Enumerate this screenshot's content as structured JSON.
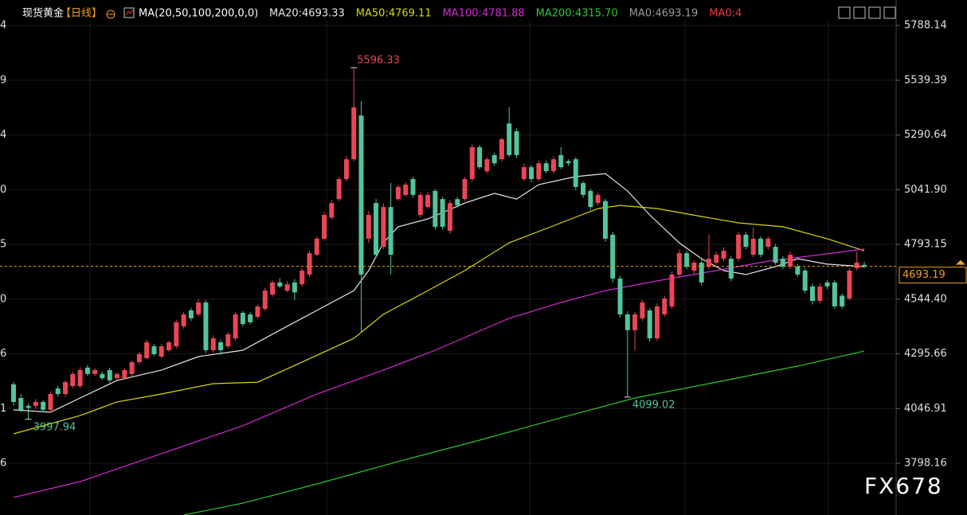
{
  "chart_data": {
    "type": "candlestick",
    "header": {
      "symbol": "现货黄金",
      "period": "【日线】",
      "ma_params": "MA(20,50,100,200,0,0)",
      "extra_labels": [
        {
          "text": "MA0:4693.19",
          "color": "#9a9a9a"
        },
        {
          "text": "MA0:4",
          "color": "#e8383d"
        }
      ]
    },
    "watermark": "FX678",
    "up_color": "#eb4656",
    "down_color": "#52c59c",
    "ylim": [
      3563,
      5904
    ],
    "yticks": [
      5788.14,
      5539.39,
      5290.64,
      {
        "value": 5041.9,
        "label": "5041.90"
      },
      4793.15,
      {
        "value": 4544.4,
        "label": "4544.40"
      },
      4295.66,
      4046.91,
      3798.16
    ],
    "left_axis_tick_labels": [
      "4",
      "9",
      "4",
      "0",
      "5",
      "0",
      "6",
      "1",
      "6"
    ],
    "grid": true,
    "candles": [
      [
        4157,
        4167,
        4059,
        4077
      ],
      [
        4095,
        4113,
        4030,
        4041
      ],
      [
        4059,
        4070,
        3997.94,
        4050
      ],
      [
        4059,
        4090,
        4045,
        4077
      ],
      [
        4077,
        4085,
        4030,
        4041
      ],
      [
        4041,
        4125,
        4030,
        4113
      ],
      [
        4138,
        4150,
        4100,
        4113
      ],
      [
        4113,
        4175,
        4100,
        4167
      ],
      [
        4149,
        4215,
        4140,
        4204
      ],
      [
        4149,
        4235,
        4140,
        4222
      ],
      [
        4233,
        4245,
        4195,
        4204
      ],
      [
        4204,
        4230,
        4195,
        4222
      ],
      [
        4204,
        4215,
        4178,
        4185
      ],
      [
        4222,
        4233,
        4165,
        4175
      ],
      [
        4185,
        4212,
        4178,
        4204
      ],
      [
        4185,
        4230,
        4178,
        4222
      ],
      [
        4204,
        4265,
        4195,
        4258
      ],
      [
        4258,
        4305,
        4250,
        4294
      ],
      [
        4276,
        4360,
        4270,
        4348
      ],
      [
        4330,
        4340,
        4285,
        4294
      ],
      [
        4283,
        4340,
        4275,
        4330
      ],
      [
        4312,
        4355,
        4305,
        4348
      ],
      [
        4330,
        4450,
        4320,
        4439
      ],
      [
        4421,
        4485,
        4410,
        4475
      ],
      [
        4493,
        4505,
        4445,
        4457
      ],
      [
        4475,
        4545,
        4465,
        4529
      ],
      [
        4529,
        4540,
        4300,
        4312
      ],
      [
        4312,
        4380,
        4300,
        4366
      ],
      [
        4348,
        4360,
        4290,
        4312
      ],
      [
        4330,
        4395,
        4320,
        4384
      ],
      [
        4366,
        4485,
        4355,
        4475
      ],
      [
        4482,
        4490,
        4420,
        4431
      ],
      [
        4475,
        4485,
        4430,
        4439
      ],
      [
        4464,
        4520,
        4455,
        4511
      ],
      [
        4500,
        4595,
        4490,
        4583
      ],
      [
        4565,
        4630,
        4555,
        4620
      ],
      [
        4620,
        4640,
        4595,
        4602
      ],
      [
        4583,
        4625,
        4575,
        4612
      ],
      [
        4620,
        4635,
        4540,
        4575
      ],
      [
        4612,
        4685,
        4600,
        4674
      ],
      [
        4656,
        4765,
        4645,
        4753
      ],
      [
        4746,
        4830,
        4740,
        4819
      ],
      [
        4819,
        4940,
        4810,
        4927
      ],
      [
        4915,
        4995,
        4905,
        4981
      ],
      [
        4999,
        5100,
        4990,
        5090
      ],
      [
        5090,
        5195,
        5080,
        5180
      ],
      [
        5180,
        5596.33,
        5170,
        5416
      ],
      [
        5379,
        5445,
        4392,
        4656
      ],
      [
        4819,
        4945,
        4800,
        4927
      ],
      [
        4981,
        5000,
        4730,
        4746
      ],
      [
        4782,
        4980,
        4770,
        4963
      ],
      [
        4963,
        5072,
        4656,
        4746
      ],
      [
        4999,
        5065,
        4990,
        5054
      ],
      [
        5018,
        5075,
        5010,
        5065
      ],
      [
        5090,
        5100,
        5005,
        5018
      ],
      [
        4927,
        5030,
        4915,
        5018
      ],
      [
        4963,
        5030,
        4955,
        5018
      ],
      [
        5036,
        5045,
        4860,
        4873
      ],
      [
        4999,
        5010,
        4860,
        4873
      ],
      [
        4855,
        4995,
        4840,
        4981
      ],
      [
        4999,
        5010,
        4960,
        4971
      ],
      [
        4999,
        5100,
        4990,
        5090
      ],
      [
        5090,
        5250,
        5080,
        5235
      ],
      [
        5235,
        5245,
        5135,
        5144
      ],
      [
        5126,
        5190,
        5115,
        5180
      ],
      [
        5199,
        5210,
        5150,
        5162
      ],
      [
        5180,
        5280,
        5170,
        5271
      ],
      [
        5343,
        5416,
        5190,
        5199
      ],
      [
        5307,
        5320,
        5185,
        5199
      ],
      [
        5090,
        5160,
        5080,
        5144
      ],
      [
        5144,
        5155,
        5075,
        5090
      ],
      [
        5090,
        5175,
        5080,
        5162
      ],
      [
        5162,
        5175,
        5115,
        5126
      ],
      [
        5126,
        5195,
        5115,
        5180
      ],
      [
        5199,
        5235,
        5135,
        5144
      ],
      [
        5171,
        5180,
        5150,
        5162
      ],
      [
        5180,
        5190,
        5040,
        5054
      ],
      [
        5072,
        5080,
        5005,
        5018
      ],
      [
        5036,
        5045,
        4950,
        4963
      ],
      [
        4981,
        5030,
        4970,
        5018
      ],
      [
        4990,
        5000,
        4805,
        4819
      ],
      [
        4837,
        4850,
        4620,
        4638
      ],
      [
        4638,
        4650,
        4460,
        4475
      ],
      [
        4475,
        4490,
        4099.02,
        4403
      ],
      [
        4403,
        4485,
        4312,
        4475
      ],
      [
        4457,
        4540,
        4445,
        4529
      ],
      [
        4493,
        4505,
        4350,
        4366
      ],
      [
        4366,
        4525,
        4355,
        4511
      ],
      [
        4475,
        4560,
        4465,
        4547
      ],
      [
        4511,
        4670,
        4500,
        4656
      ],
      [
        4656,
        4770,
        4645,
        4753
      ],
      [
        4753,
        4765,
        4680,
        4692
      ],
      [
        4674,
        4720,
        4660,
        4710
      ],
      [
        4710,
        4725,
        4605,
        4620
      ],
      [
        4692,
        4837,
        4680,
        4728
      ],
      [
        4710,
        4760,
        4700,
        4746
      ],
      [
        4728,
        4780,
        4715,
        4764
      ],
      [
        4728,
        4740,
        4625,
        4638
      ],
      [
        4728,
        4850,
        4715,
        4837
      ],
      [
        4837,
        4850,
        4770,
        4782
      ],
      [
        4746,
        4870,
        4735,
        4819
      ],
      [
        4819,
        4830,
        4735,
        4746
      ],
      [
        4782,
        4830,
        4770,
        4819
      ],
      [
        4782,
        4795,
        4700,
        4710
      ],
      [
        4728,
        4740,
        4680,
        4692
      ],
      [
        4692,
        4760,
        4680,
        4746
      ],
      [
        4692,
        4705,
        4645,
        4656
      ],
      [
        4674,
        4685,
        4570,
        4583
      ],
      [
        4602,
        4615,
        4520,
        4536
      ],
      [
        4536,
        4615,
        4525,
        4602
      ],
      [
        4620,
        4630,
        4590,
        4602
      ],
      [
        4620,
        4630,
        4500,
        4511
      ],
      [
        4560,
        4570,
        4500,
        4511
      ],
      [
        4547,
        4685,
        4540,
        4674
      ],
      [
        4685,
        4760,
        4675,
        4710
      ],
      [
        4700,
        4715,
        4685,
        4693.19
      ]
    ],
    "series": [
      {
        "name": "MA20:4693.33",
        "color": "#e6e6e6",
        "x": [
          0,
          5,
          9,
          14,
          20,
          25,
          31,
          36,
          41,
          46,
          48,
          50,
          52,
          56,
          61,
          65,
          68,
          71,
          76,
          80,
          83,
          86,
          90,
          93,
          96,
          99,
          103,
          106,
          110,
          115
        ],
        "values": [
          4041,
          4030,
          4095,
          4175,
          4222,
          4283,
          4312,
          4403,
          4493,
          4583,
          4674,
          4800,
          4873,
          4909,
          4981,
          5025,
          4999,
          5065,
          5101,
          5115,
          5036,
          4927,
          4800,
          4728,
          4674,
          4656,
          4692,
          4728,
          4703,
          4692
        ]
      },
      {
        "name": "MA50:4769.11",
        "color": "#d8d800",
        "x": [
          0,
          9,
          14,
          20,
          27,
          33,
          39,
          46,
          50,
          56,
          61,
          67,
          74,
          79,
          82,
          87,
          93,
          98,
          104,
          110,
          115
        ],
        "values": [
          3932,
          4015,
          4077,
          4113,
          4160,
          4167,
          4258,
          4366,
          4475,
          4583,
          4674,
          4800,
          4891,
          4956,
          4970,
          4956,
          4920,
          4891,
          4873,
          4819,
          4764
        ]
      },
      {
        "name": "MA100:4781.88",
        "color": "#d42ad4",
        "x": [
          0,
          9,
          20,
          31,
          41,
          50,
          57,
          67,
          74,
          80,
          87,
          95,
          102,
          109,
          115
        ],
        "values": [
          3643,
          3715,
          3842,
          3969,
          4113,
          4222,
          4312,
          4457,
          4529,
          4583,
          4627,
          4674,
          4717,
          4746,
          4772
        ]
      },
      {
        "name": "MA200:4315.70",
        "color": "#2ec82e",
        "x": [
          23,
          31,
          41,
          52,
          63,
          74,
          84,
          95,
          106,
          115
        ],
        "values": [
          3563,
          3617,
          3704,
          3806,
          3903,
          4005,
          4095,
          4167,
          4240,
          4308
        ]
      }
    ]
  }
}
